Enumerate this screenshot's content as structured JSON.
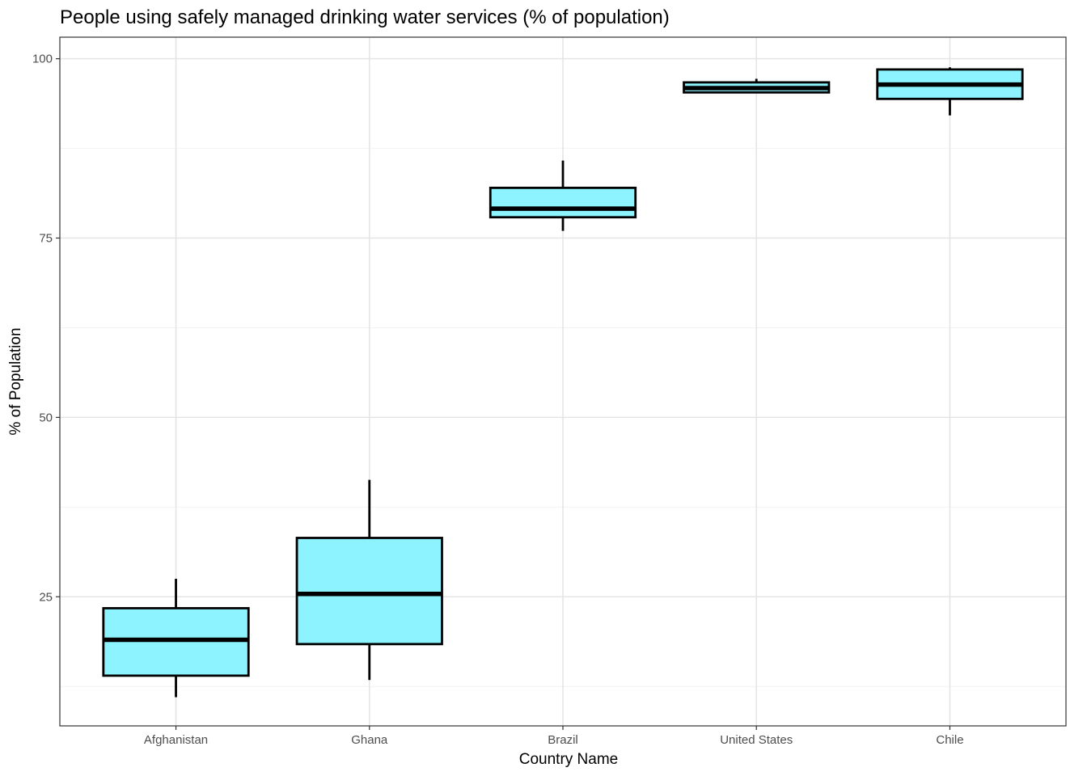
{
  "chart_data": {
    "type": "boxplot",
    "title": "People using safely managed drinking water services (% of population)",
    "xlabel": "Country Name",
    "ylabel": "% of Population",
    "ylim": [
      7,
      103
    ],
    "yticks": [
      25,
      50,
      75,
      100
    ],
    "y_minor_ticks": [
      12.5,
      37.5,
      62.5,
      87.5
    ],
    "grid": true,
    "legend": "none",
    "categories": [
      "Afghanistan",
      "Ghana",
      "Brazil",
      "United States",
      "Chile"
    ],
    "boxes": [
      {
        "category": "Afghanistan",
        "min": 11.0,
        "q1": 14.0,
        "median": 19.0,
        "q3": 23.4,
        "max": 27.5
      },
      {
        "category": "Ghana",
        "min": 13.4,
        "q1": 18.4,
        "median": 25.4,
        "q3": 33.2,
        "max": 41.3
      },
      {
        "category": "Brazil",
        "min": 76.0,
        "q1": 77.9,
        "median": 79.1,
        "q3": 82.0,
        "max": 85.8
      },
      {
        "category": "United States",
        "min": 95.3,
        "q1": 95.3,
        "median": 95.9,
        "q3": 96.7,
        "max": 97.2
      },
      {
        "category": "Chile",
        "min": 92.1,
        "q1": 94.4,
        "median": 96.4,
        "q3": 98.5,
        "max": 98.8
      }
    ],
    "colors": {
      "box_fill": "#8DF4FF",
      "box_stroke": "#000000",
      "grid_major": "#E5E5E5",
      "grid_minor": "#F2F2F2",
      "panel_border": "#333333"
    }
  }
}
